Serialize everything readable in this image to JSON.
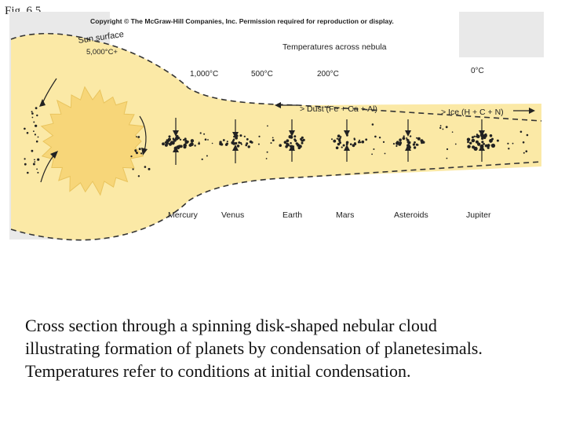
{
  "figure_label": "Fig. 6.5",
  "copyright": "Copyright © The McGraw-Hill Companies, Inc. Permission required for reproduction or display.",
  "sun_label": "Sun surface",
  "sun_temp": "5,000°C+",
  "temps_title": "Temperatures across nebula",
  "temperatures": [
    "1,000°C",
    "500°C",
    "200°C",
    "0°C"
  ],
  "dust_label": "> Dust (Fe + Ca + Al)",
  "ice_label": "> Ice (H + C + N)",
  "planets": [
    "Mercury",
    "Venus",
    "Earth",
    "Mars",
    "Asteroids",
    "Jupiter"
  ],
  "colors": {
    "nebula": "#fbe9a6",
    "sun": "#f7d679",
    "outline": "#333333"
  },
  "caption_lines": [
    "Cross section through a spinning disk-shaped nebular cloud",
    "illustrating formation of planets by condensation of planetesimals.",
    "Temperatures refer to conditions at initial condensation."
  ]
}
